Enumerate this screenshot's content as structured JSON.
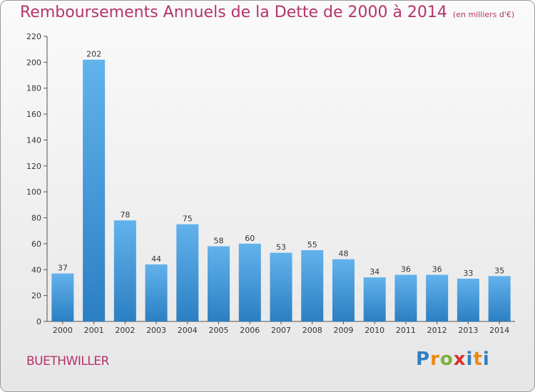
{
  "header": {
    "title": "Remboursements Annuels de la Dette de 2000 à 2014",
    "unit": "(en milliers d'€)"
  },
  "footer": {
    "commune": "BUETHWILLER",
    "logo": "Proxiti"
  },
  "colors": {
    "title": "#b5336a",
    "bar_top": "#62b2ec",
    "bar_bottom": "#2b7fc2"
  },
  "chart_data": {
    "type": "bar",
    "title": "Remboursements Annuels de la Dette de 2000 à 2014",
    "categories": [
      "2000",
      "2001",
      "2002",
      "2003",
      "2004",
      "2005",
      "2006",
      "2007",
      "2008",
      "2009",
      "2010",
      "2011",
      "2012",
      "2013",
      "2014"
    ],
    "values": [
      37,
      202,
      78,
      44,
      75,
      58,
      60,
      53,
      55,
      48,
      34,
      36,
      36,
      33,
      35
    ],
    "ylim": [
      0,
      220
    ],
    "yticks": [
      0,
      20,
      40,
      60,
      80,
      100,
      120,
      140,
      160,
      180,
      200,
      220
    ],
    "grid": false,
    "data_labels": true
  }
}
